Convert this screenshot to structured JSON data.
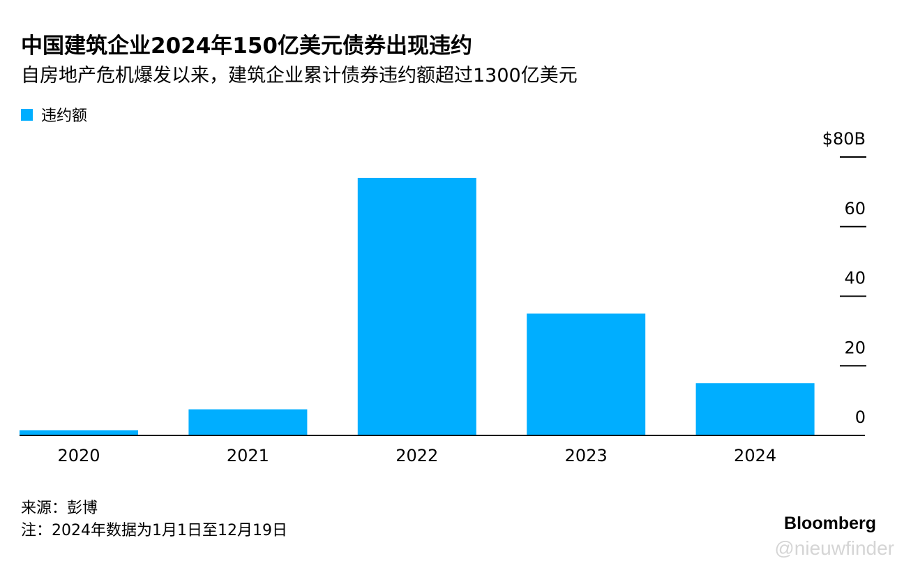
{
  "header": {
    "title": "中国建筑企业2024年150亿美元债券出现违约",
    "subtitle": "自房地产危机爆发以来，建筑企业累计债券违约额超过1300亿美元"
  },
  "legend": {
    "label": "违约额"
  },
  "chart_data": {
    "type": "bar",
    "categories": [
      "2020",
      "2021",
      "2022",
      "2023",
      "2024"
    ],
    "series": [
      {
        "name": "违约额",
        "values": [
          1.5,
          7.5,
          74,
          35,
          15
        ],
        "color": "#00aeff"
      }
    ],
    "ylim": [
      0,
      80
    ],
    "yticks": [
      {
        "value": 80,
        "label": "$80B"
      },
      {
        "value": 60,
        "label": "60"
      },
      {
        "value": 40,
        "label": "40"
      },
      {
        "value": 20,
        "label": "20"
      },
      {
        "value": 0,
        "label": "0"
      }
    ],
    "y_axis_side": "right",
    "grid": false,
    "legend_placement": "top-left"
  },
  "footer": {
    "source": "来源：彭博",
    "note": "注：2024年数据为1月1日至12月19日",
    "brand": "Bloomberg"
  },
  "watermark": "@nieuwfinder"
}
